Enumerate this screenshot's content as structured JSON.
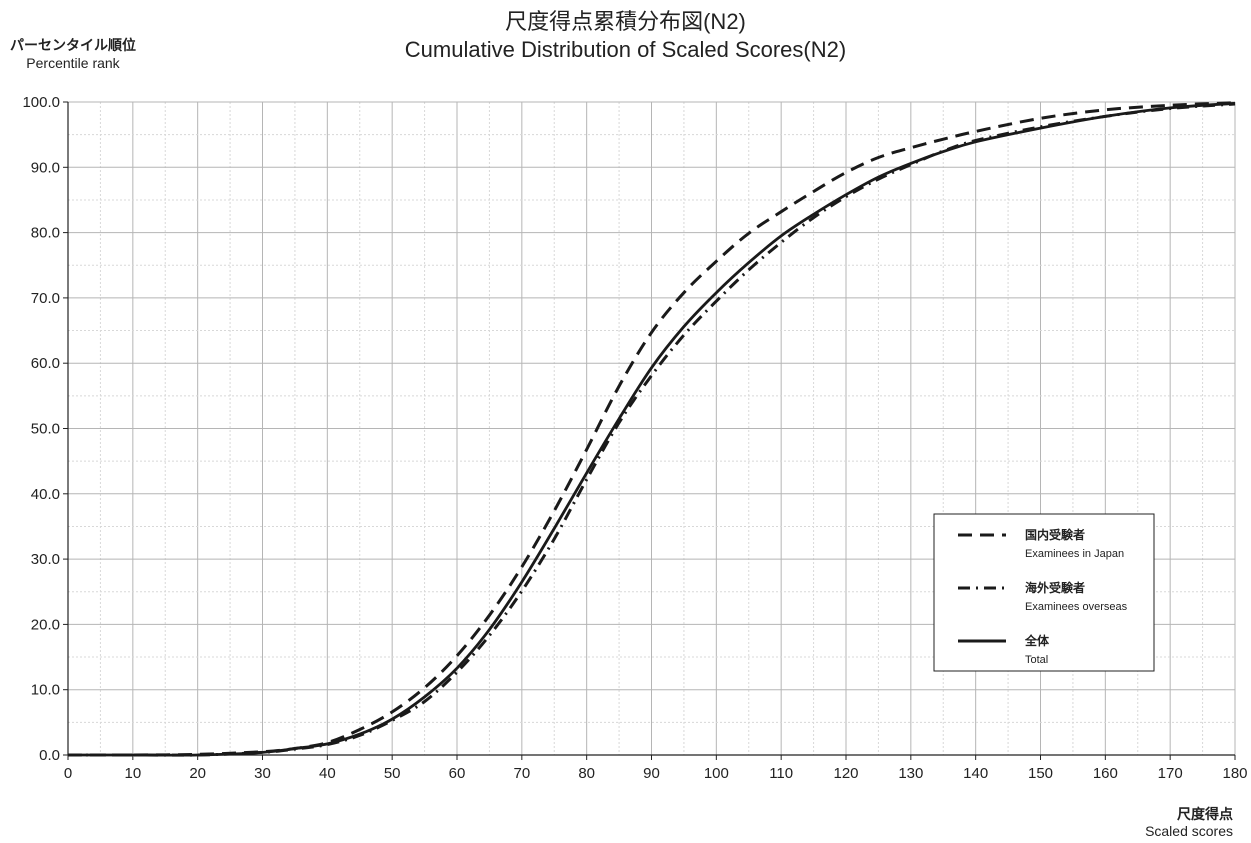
{
  "chart_data": {
    "type": "line",
    "title_jp": "尺度得点累積分布図(N2)",
    "title_en": "Cumulative Distribution of Scaled Scores(N2)",
    "ylabel_jp": "パーセンタイル順位",
    "ylabel_en": "Percentile rank",
    "xlabel_jp": "尺度得点",
    "xlabel_en": "Scaled scores",
    "xlim": [
      0,
      180
    ],
    "ylim": [
      0,
      100
    ],
    "x_ticks": [
      "0",
      "10",
      "20",
      "30",
      "40",
      "50",
      "60",
      "70",
      "80",
      "90",
      "100",
      "110",
      "120",
      "130",
      "140",
      "150",
      "160",
      "170",
      "180"
    ],
    "y_ticks": [
      "0.0",
      "10.0",
      "20.0",
      "30.0",
      "40.0",
      "50.0",
      "60.0",
      "70.0",
      "80.0",
      "90.0",
      "100.0"
    ],
    "grid": true,
    "legend_position": "bottom-right",
    "x": [
      0,
      10,
      20,
      30,
      35,
      40,
      45,
      50,
      55,
      60,
      65,
      70,
      75,
      80,
      85,
      90,
      95,
      100,
      105,
      110,
      115,
      120,
      125,
      130,
      135,
      140,
      150,
      160,
      170,
      180
    ],
    "series": [
      {
        "name_jp": "国内受験者",
        "name_en": "Examinees in Japan",
        "style": "dashed",
        "values": [
          0,
          0,
          0.1,
          0.5,
          1.0,
          1.9,
          3.9,
          6.6,
          10.3,
          15.2,
          21.4,
          28.8,
          37.4,
          46.8,
          56.5,
          64.7,
          70.8,
          75.6,
          79.9,
          83.2,
          86.3,
          89.2,
          91.5,
          93.0,
          94.3,
          95.5,
          97.5,
          98.8,
          99.5,
          99.9
        ]
      },
      {
        "name_jp": "海外受験者",
        "name_en": "Examinees overseas",
        "style": "dash-dot",
        "values": [
          0,
          0,
          0,
          0.4,
          0.9,
          1.6,
          3.0,
          5.3,
          8.2,
          12.7,
          18.3,
          25.1,
          33.1,
          42.2,
          50.9,
          58.1,
          64.3,
          69.5,
          74.3,
          78.5,
          82.3,
          85.5,
          88.2,
          90.4,
          92.5,
          94.1,
          96.2,
          97.8,
          99.0,
          99.7
        ]
      },
      {
        "name_jp": "全体",
        "name_en": "Total",
        "style": "solid",
        "values": [
          0,
          0,
          0,
          0.4,
          1.0,
          1.7,
          3.2,
          5.5,
          8.9,
          13.3,
          19.2,
          26.5,
          34.7,
          43.2,
          51.5,
          59.3,
          65.6,
          70.8,
          75.4,
          79.5,
          82.8,
          85.8,
          88.5,
          90.6,
          92.4,
          93.9,
          96.0,
          97.8,
          99.1,
          99.8
        ]
      }
    ]
  }
}
